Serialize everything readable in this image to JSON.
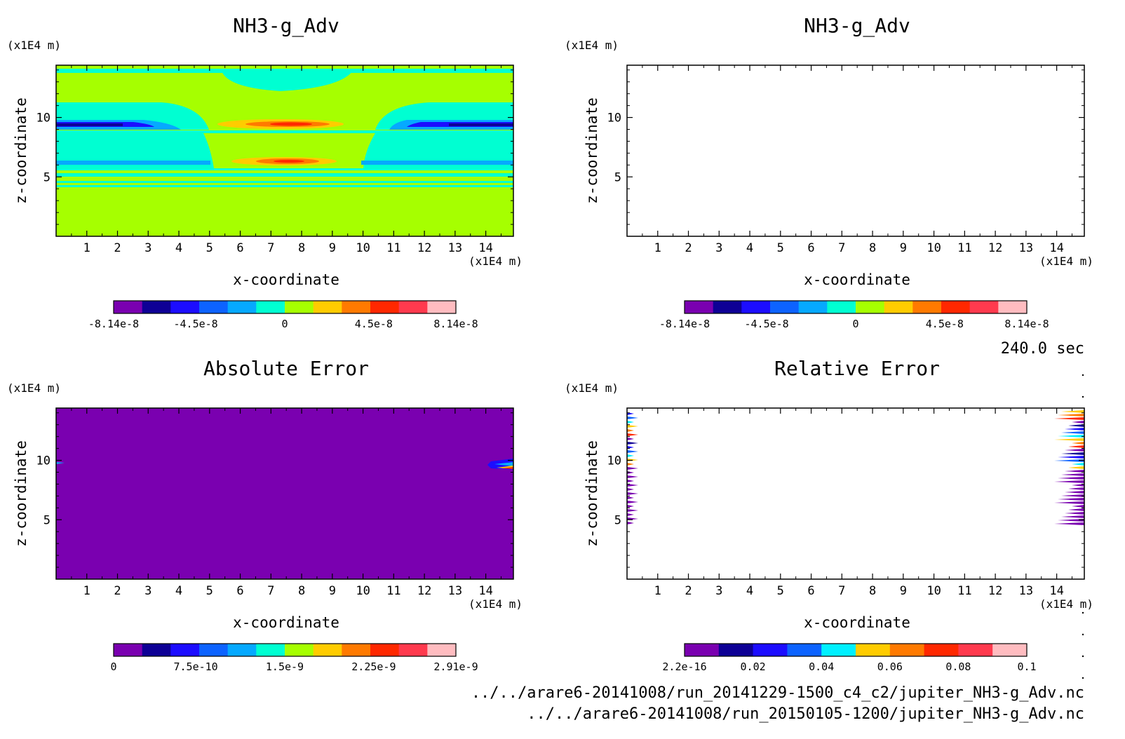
{
  "time_label": "240.0 sec",
  "footer": {
    "line1": "../../arare6-20141008/run_20141229-1500_c4_c2/jupiter_NH3-g_Adv.nc",
    "line2": "../../arare6-20141008/run_20150105-1200/jupiter_NH3-g_Adv.nc"
  },
  "chart_data": [
    {
      "id": "p1",
      "type": "heatmap",
      "title": "NH3-g_Adv",
      "xlabel": "x-coordinate",
      "ylabel": "z-coordinate",
      "xunit": "(x1E4 m)",
      "yunit": "(x1E4 m)",
      "xlim": [
        0,
        14.9
      ],
      "ylim": [
        0,
        14.4
      ],
      "xticks": [
        "1",
        "2",
        "3",
        "4",
        "5",
        "6",
        "7",
        "8",
        "9",
        "10",
        "11",
        "12",
        "13",
        "14"
      ],
      "yticks": [
        "5",
        "10"
      ],
      "colorbar": {
        "ticks": [
          "-8.14e-8",
          "-4.5e-8",
          "0",
          "4.5e-8",
          "8.14e-8"
        ],
        "colors": [
          "#7a00b0",
          "#0e0095",
          "#1c0dff",
          "#0d63ff",
          "#06a9ff",
          "#00ffd2",
          "#a6ff00",
          "#ffcc00",
          "#ff7a00",
          "#ff2800",
          "#ff3a4e",
          "#ffbcc0"
        ]
      }
    },
    {
      "id": "p2",
      "type": "heatmap",
      "title": "NH3-g_Adv",
      "xlabel": "x-coordinate",
      "ylabel": "z-coordinate",
      "xunit": "(x1E4 m)",
      "yunit": "(x1E4 m)",
      "xlim": [
        0,
        14.9
      ],
      "ylim": [
        0,
        14.4
      ],
      "xticks": [
        "1",
        "2",
        "3",
        "4",
        "5",
        "6",
        "7",
        "8",
        "9",
        "10",
        "11",
        "12",
        "13",
        "14"
      ],
      "yticks": [
        "5",
        "10"
      ],
      "colorbar": {
        "ticks": [
          "-8.14e-8",
          "-4.5e-8",
          "0",
          "4.5e-8",
          "8.14e-8"
        ],
        "colors": [
          "#7a00b0",
          "#0e0095",
          "#1c0dff",
          "#0d63ff",
          "#06a9ff",
          "#00ffd2",
          "#a6ff00",
          "#ffcc00",
          "#ff7a00",
          "#ff2800",
          "#ff3a4e",
          "#ffbcc0"
        ]
      }
    },
    {
      "id": "p3",
      "type": "heatmap",
      "title": "Absolute Error",
      "xlabel": "x-coordinate",
      "ylabel": "z-coordinate",
      "xunit": "(x1E4 m)",
      "yunit": "(x1E4 m)",
      "xlim": [
        0,
        14.9
      ],
      "ylim": [
        0,
        14.4
      ],
      "xticks": [
        "1",
        "2",
        "3",
        "4",
        "5",
        "6",
        "7",
        "8",
        "9",
        "10",
        "11",
        "12",
        "13",
        "14"
      ],
      "yticks": [
        "5",
        "10"
      ],
      "colorbar": {
        "ticks": [
          "0",
          "7.5e-10",
          "1.5e-9",
          "2.25e-9",
          "2.91e-9"
        ],
        "colors": [
          "#7a00b0",
          "#0e0095",
          "#1c0dff",
          "#0d63ff",
          "#06a9ff",
          "#00ffd2",
          "#a6ff00",
          "#ffcc00",
          "#ff7a00",
          "#ff2800",
          "#ff3a4e",
          "#ffbcc0"
        ]
      }
    },
    {
      "id": "p4",
      "type": "heatmap",
      "title": "Relative Error",
      "xlabel": "x-coordinate",
      "ylabel": "z-coordinate",
      "xunit": "(x1E4 m)",
      "yunit": "(x1E4 m)",
      "xlim": [
        0,
        14.9
      ],
      "ylim": [
        0,
        14.4
      ],
      "xticks": [
        "1",
        "2",
        "3",
        "4",
        "5",
        "6",
        "7",
        "8",
        "9",
        "10",
        "11",
        "12",
        "13",
        "14"
      ],
      "yticks": [
        "5",
        "10"
      ],
      "colorbar": {
        "ticks": [
          "2.2e-16",
          "0.02",
          "0.04",
          "0.06",
          "0.08",
          "0.1"
        ],
        "colors": [
          "#7a00b0",
          "#0e0095",
          "#1c0dff",
          "#0d63ff",
          "#00f0ff",
          "#ffcc00",
          "#ff7a00",
          "#ff2800",
          "#ff3a4e",
          "#ffbcc0"
        ]
      }
    }
  ]
}
